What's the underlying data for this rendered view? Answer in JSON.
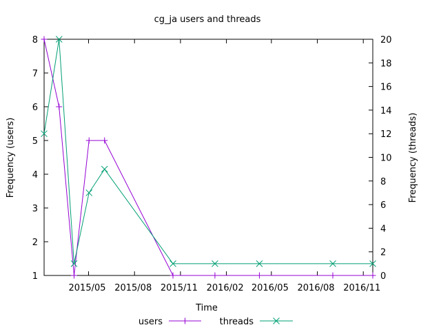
{
  "chart_data": {
    "type": "line",
    "title": "cg_ja users and threads",
    "xlabel": "Time",
    "ylabel": "Frequency (users)",
    "y2label": "Frequency (threads)",
    "xlim": [
      "2015-02-01",
      "2016-11-20"
    ],
    "ylim": [
      1,
      8
    ],
    "y2lim": [
      0,
      20
    ],
    "x_ticks": [
      {
        "date": "2015-05-01",
        "label": "2015/05"
      },
      {
        "date": "2015-08-01",
        "label": "2015/08"
      },
      {
        "date": "2015-11-01",
        "label": "2015/11"
      },
      {
        "date": "2016-02-01",
        "label": "2016/02"
      },
      {
        "date": "2016-05-01",
        "label": "2016/05"
      },
      {
        "date": "2016-08-01",
        "label": "2016/08"
      },
      {
        "date": "2016-11-01",
        "label": "2016/11"
      }
    ],
    "y_ticks": [
      1,
      2,
      3,
      4,
      5,
      6,
      7,
      8
    ],
    "y2_ticks": [
      0,
      2,
      4,
      6,
      8,
      10,
      12,
      14,
      16,
      18,
      20
    ],
    "grid": false,
    "legend_position": "bottom-center",
    "series": [
      {
        "name": "users",
        "axis": "y",
        "marker": "plus",
        "color": "#9400d3",
        "x": [
          "2015-02-01",
          "2015-03-03",
          "2015-04-02",
          "2015-05-02",
          "2015-06-02",
          "2015-10-17",
          "2016-01-09",
          "2016-04-07",
          "2016-09-01",
          "2016-11-20"
        ],
        "values": [
          8,
          6,
          1,
          5,
          5,
          1,
          1,
          1,
          1,
          1
        ]
      },
      {
        "name": "threads",
        "axis": "y2",
        "marker": "cross",
        "color": "#009e73",
        "x": [
          "2015-02-01",
          "2015-03-03",
          "2015-04-02",
          "2015-05-02",
          "2015-06-02",
          "2015-10-17",
          "2016-01-09",
          "2016-04-07",
          "2016-09-01",
          "2016-11-20"
        ],
        "values": [
          12,
          20,
          1,
          7,
          9,
          1,
          1,
          1,
          1,
          1
        ]
      }
    ]
  }
}
